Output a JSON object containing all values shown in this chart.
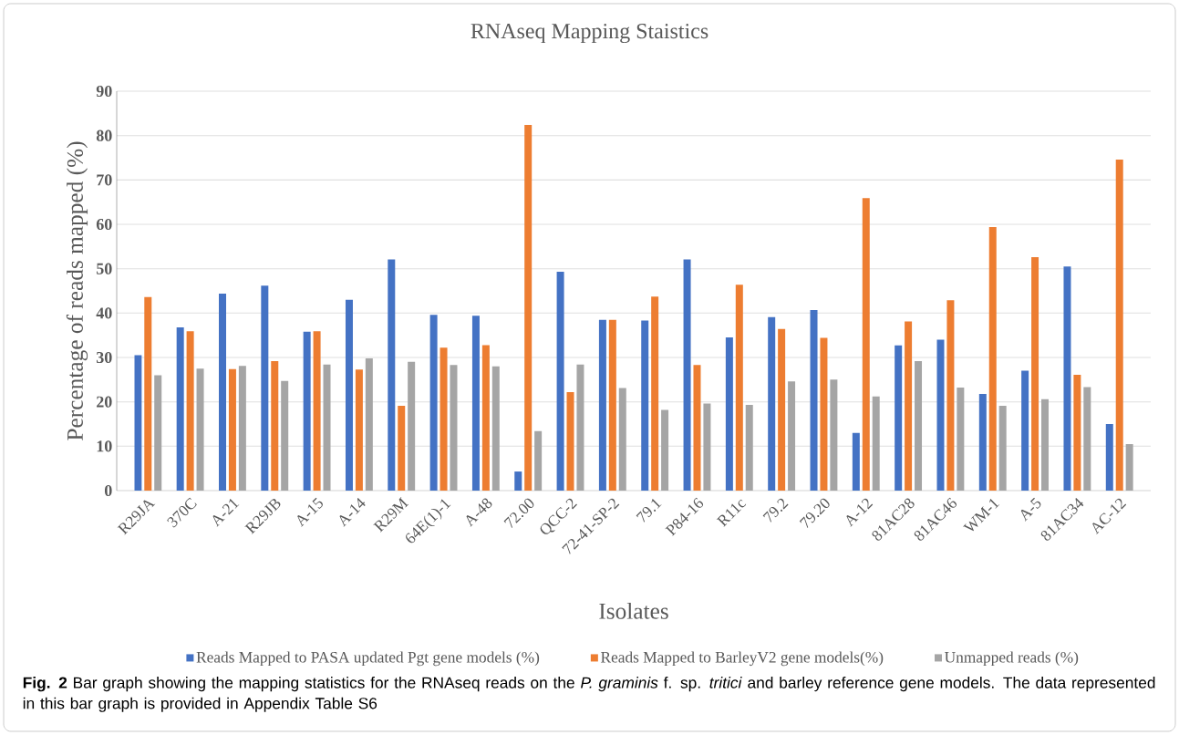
{
  "chart_data": {
    "type": "bar",
    "title": "RNAseq Mapping Staistics",
    "xlabel": "Isolates",
    "ylabel": "Percentage of reads mapped (%)",
    "categories": [
      "R29JA",
      "370C",
      "A-21",
      "R29JB",
      "A-15",
      "A-14",
      "R29M",
      "64E(1)-1",
      "A-48",
      "72.00",
      "QCC-2",
      "72-41-SP-2",
      "79.1",
      "P84-16",
      "R11c",
      "79.2",
      "79.20",
      "A-12",
      "81AC28",
      "81AC46",
      "WM-1",
      "A-5",
      "81AC34",
      "AC-12"
    ],
    "series": [
      {
        "name": "Reads Mapped to PASA updated Pgt gene models (%)",
        "color": "#4472c4",
        "values": [
          30.5,
          36.8,
          44.4,
          46.2,
          35.8,
          43.0,
          52.1,
          39.6,
          39.4,
          4.3,
          49.3,
          38.5,
          38.3,
          52.1,
          34.5,
          39.1,
          40.7,
          13.0,
          32.7,
          34.0,
          21.8,
          27.0,
          50.5,
          15.0
        ]
      },
      {
        "name": "Reads Mapped to BarleyV2 gene models(%)",
        "color": "#ed7d31",
        "values": [
          43.6,
          35.9,
          27.4,
          29.2,
          35.9,
          27.3,
          19.1,
          32.2,
          32.8,
          82.4,
          22.2,
          38.5,
          43.7,
          28.3,
          46.4,
          36.4,
          34.4,
          65.9,
          38.1,
          42.9,
          59.4,
          52.6,
          26.1,
          74.6
        ]
      },
      {
        "name": "Unmapped reads (%)",
        "color": "#a5a5a5",
        "values": [
          26.0,
          27.5,
          28.1,
          24.7,
          28.4,
          29.8,
          29.0,
          28.3,
          28.0,
          13.4,
          28.4,
          23.1,
          18.2,
          19.6,
          19.3,
          24.6,
          25.0,
          21.2,
          29.2,
          23.2,
          19.1,
          20.6,
          23.3,
          10.5
        ]
      }
    ],
    "ylim": [
      0,
      90
    ],
    "yticks": [
      0,
      10,
      20,
      30,
      40,
      50,
      60,
      70,
      80,
      90
    ],
    "grid": "y",
    "legend": "bottom",
    "annotations": [
      "**Fig. 2** Bar graph showing the mapping statistics for the RNAseq reads on the *P. graminis* f. sp. *tritici* and barley reference gene models. The data represented in this bar graph is provided in Appendix Table S6"
    ]
  }
}
